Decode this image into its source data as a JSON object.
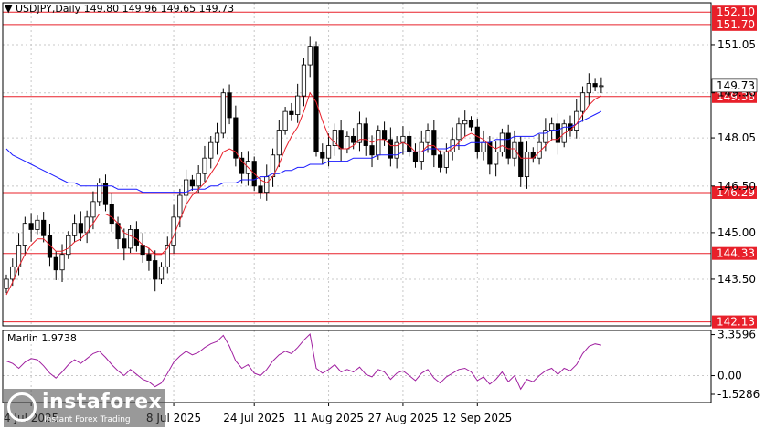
{
  "header": {
    "symbol": "USDJPY,Daily",
    "ohlc": "149.80 149.96 149.65 149.73"
  },
  "indicator": {
    "name": "Marlin 1.9738",
    "axis_labels": [
      "3.3596",
      "0.00",
      "-1.5286"
    ]
  },
  "watermark": {
    "brand": "instaforex",
    "tagline": "Instant Forex Trading"
  },
  "colors": {
    "bull": "#ffffff",
    "bear": "#000000",
    "ma_fast": "#e8202a",
    "ma_slow": "#1a1aff",
    "level": "#e8202a",
    "osc": "#a020a0"
  },
  "chart_data": {
    "type": "candlestick",
    "ylim": [
      142.0,
      152.4
    ],
    "price_ticks": [
      "151.05",
      "149.50",
      "148.05",
      "146.50",
      "145.00",
      "143.50"
    ],
    "x_labels": [
      {
        "index": 4,
        "label": "4 Jul 2025"
      },
      {
        "index": 27,
        "label": "8 Jul 2025"
      },
      {
        "index": 40,
        "label": "24 Jul 2025"
      },
      {
        "index": 52,
        "label": "11 Aug 2025"
      },
      {
        "index": 64,
        "label": "27 Aug 2025"
      },
      {
        "index": 76,
        "label": "12 Sep 2025"
      }
    ],
    "levels": [
      {
        "value": 152.1,
        "label": "152.10"
      },
      {
        "value": 151.7,
        "label": "151.70"
      },
      {
        "value": 149.38,
        "label": "149.38"
      },
      {
        "value": 146.29,
        "label": "146.29"
      },
      {
        "value": 144.33,
        "label": "144.33"
      },
      {
        "value": 142.13,
        "label": "142.13"
      }
    ],
    "last_price": {
      "value": 149.73,
      "label": "149.73"
    },
    "closes": [
      143.5,
      143.9,
      144.6,
      145.3,
      145.1,
      145.4,
      144.9,
      144.2,
      143.8,
      144.3,
      144.9,
      145.3,
      145.0,
      145.5,
      146.0,
      146.6,
      145.9,
      145.3,
      144.8,
      144.5,
      145.1,
      144.6,
      144.3,
      144.1,
      143.5,
      143.9,
      144.6,
      145.5,
      146.2,
      146.7,
      146.5,
      146.9,
      147.4,
      147.9,
      148.2,
      149.5,
      148.7,
      147.4,
      146.9,
      147.3,
      146.5,
      146.3,
      146.8,
      147.5,
      148.3,
      148.9,
      148.8,
      149.4,
      150.4,
      151.0,
      147.6,
      147.4,
      147.8,
      148.3,
      147.7,
      148.1,
      147.9,
      148.5,
      147.8,
      147.5,
      148.3,
      148.0,
      147.4,
      147.9,
      148.1,
      147.6,
      147.3,
      147.9,
      148.3,
      147.5,
      147.1,
      147.6,
      148.0,
      148.5,
      148.6,
      148.4,
      147.6,
      147.9,
      147.2,
      147.6,
      148.2,
      147.4,
      147.9,
      146.8,
      147.6,
      147.4,
      147.9,
      148.3,
      148.5,
      147.9,
      148.5,
      148.3,
      148.9,
      149.5,
      149.8,
      149.7,
      149.73
    ],
    "ma_fast": [
      143.0,
      143.4,
      143.9,
      144.3,
      144.6,
      144.8,
      144.8,
      144.6,
      144.4,
      144.4,
      144.5,
      144.7,
      144.8,
      145.0,
      145.3,
      145.6,
      145.6,
      145.5,
      145.3,
      145.0,
      144.9,
      144.8,
      144.6,
      144.5,
      144.3,
      144.3,
      144.5,
      144.9,
      145.4,
      145.9,
      146.2,
      146.4,
      146.6,
      146.9,
      147.2,
      147.6,
      147.7,
      147.6,
      147.3,
      147.1,
      146.9,
      146.7,
      146.6,
      146.8,
      147.2,
      147.7,
      148.1,
      148.4,
      148.9,
      149.5,
      149.2,
      148.6,
      148.1,
      147.9,
      147.7,
      147.7,
      147.8,
      148.0,
      148.0,
      147.9,
      148.0,
      148.0,
      147.8,
      147.8,
      147.9,
      147.8,
      147.6,
      147.6,
      147.8,
      147.8,
      147.6,
      147.6,
      147.7,
      147.9,
      148.1,
      148.2,
      148.1,
      148.0,
      147.8,
      147.7,
      147.8,
      147.7,
      147.7,
      147.4,
      147.4,
      147.4,
      147.6,
      147.8,
      148.0,
      148.0,
      148.2,
      148.3,
      148.5,
      148.8,
      149.1,
      149.3,
      149.4
    ],
    "ma_slow": [
      147.7,
      147.5,
      147.4,
      147.3,
      147.2,
      147.1,
      147.0,
      146.9,
      146.8,
      146.7,
      146.6,
      146.6,
      146.5,
      146.5,
      146.5,
      146.5,
      146.5,
      146.5,
      146.4,
      146.4,
      146.4,
      146.4,
      146.3,
      146.3,
      146.3,
      146.3,
      146.3,
      146.3,
      146.3,
      146.3,
      146.4,
      146.4,
      146.4,
      146.5,
      146.5,
      146.6,
      146.6,
      146.6,
      146.7,
      146.7,
      146.7,
      146.8,
      146.8,
      146.9,
      146.9,
      147.0,
      147.0,
      147.1,
      147.1,
      147.2,
      147.2,
      147.2,
      147.3,
      147.3,
      147.3,
      147.3,
      147.4,
      147.4,
      147.4,
      147.4,
      147.5,
      147.5,
      147.5,
      147.5,
      147.6,
      147.6,
      147.6,
      147.6,
      147.7,
      147.7,
      147.7,
      147.7,
      147.8,
      147.8,
      147.8,
      147.9,
      147.9,
      147.9,
      147.9,
      148.0,
      148.0,
      148.0,
      148.1,
      148.1,
      148.1,
      148.1,
      148.2,
      148.2,
      148.3,
      148.3,
      148.4,
      148.4,
      148.5,
      148.6,
      148.7,
      148.8,
      148.9
    ],
    "osc_ylim": [
      -2.2,
      3.7
    ],
    "osc": [
      1.2,
      1.0,
      0.6,
      1.1,
      1.4,
      1.3,
      0.8,
      0.2,
      -0.2,
      0.3,
      0.9,
      1.3,
      1.0,
      1.4,
      1.8,
      2.0,
      1.5,
      0.9,
      0.4,
      0.0,
      0.5,
      0.1,
      -0.3,
      -0.5,
      -0.9,
      -0.6,
      0.2,
      1.1,
      1.6,
      2.0,
      1.7,
      1.9,
      2.3,
      2.6,
      2.8,
      3.3,
      2.4,
      1.2,
      0.6,
      0.9,
      0.2,
      0.0,
      0.5,
      1.2,
      1.7,
      2.0,
      1.8,
      2.3,
      2.9,
      3.4,
      0.6,
      0.2,
      0.5,
      0.9,
      0.3,
      0.5,
      0.3,
      0.7,
      0.1,
      -0.1,
      0.5,
      0.3,
      -0.3,
      0.2,
      0.4,
      0.0,
      -0.4,
      0.2,
      0.5,
      -0.2,
      -0.6,
      -0.1,
      0.2,
      0.5,
      0.6,
      0.3,
      -0.4,
      -0.1,
      -0.7,
      -0.3,
      0.3,
      -0.5,
      0.0,
      -1.1,
      -0.3,
      -0.5,
      0.0,
      0.4,
      0.6,
      0.1,
      0.6,
      0.4,
      0.9,
      1.8,
      2.4,
      2.6,
      2.5
    ]
  }
}
